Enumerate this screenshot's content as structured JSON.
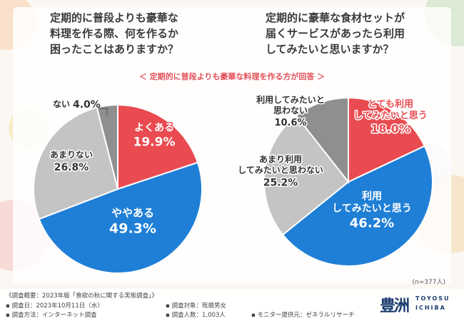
{
  "questions": {
    "left": "定期的に普段よりも豪華な\n料理を作る際、何を作るか\n困ったことはありますか？",
    "right": "定期的に豪華な食材セットが\n届くサービスがあったら利用\nしてみたいと思いますか？"
  },
  "subtitle": "＜ 定期的に普段よりも豪華な料理を作る方が回答 ＞",
  "sample_note": "(n=377人)",
  "colors": {
    "red": "#e94b50",
    "blue": "#1f7fd6",
    "light_gray": "#c4c4c4",
    "dark_gray": "#8f8f8f"
  },
  "chart_data": [
    {
      "type": "pie",
      "slices": [
        {
          "label": "よくある",
          "value": 19.9,
          "value_label": "19.9%",
          "color": "#e94b50"
        },
        {
          "label": "ややある",
          "value": 49.3,
          "value_label": "49.3%",
          "color": "#1f7fd6"
        },
        {
          "label": "あまりない",
          "value": 26.8,
          "value_label": "26.8%",
          "color": "#c4c4c4"
        },
        {
          "label": "ない",
          "value": 4.0,
          "value_label": "4.0%",
          "color": "#8f8f8f"
        }
      ]
    },
    {
      "type": "pie",
      "slices": [
        {
          "label": "とても利用\nしてみたいと思う",
          "value": 18.0,
          "value_label": "18.0%",
          "color": "#e94b50"
        },
        {
          "label": "利用\nしてみたいと思う",
          "value": 46.2,
          "value_label": "46.2%",
          "color": "#1f7fd6"
        },
        {
          "label": "あまり利用\nしてみたいと思わない",
          "value": 25.2,
          "value_label": "25.2%",
          "color": "#c4c4c4"
        },
        {
          "label": "利用してみたいと\n思わない",
          "value": 10.6,
          "value_label": "10.6%",
          "color": "#8f8f8f"
        }
      ]
    }
  ],
  "footer": {
    "overview": "《調査概要：2023年版「食欲の秋に関する実態調査」》",
    "date": "▪ 調査日：2023年10月11日（水）",
    "method": "▪ 調査方法：インターネット調査",
    "target": "▪ 調査対象：既婚男女",
    "count": "▪ 調査人数：1,003人",
    "provider": "▪ モニター提供元：ゼネラルリサーチ"
  },
  "logo": {
    "kanji": "豊洲",
    "roman_top": "TOYOSU",
    "roman_bottom": "ICHIBA"
  }
}
